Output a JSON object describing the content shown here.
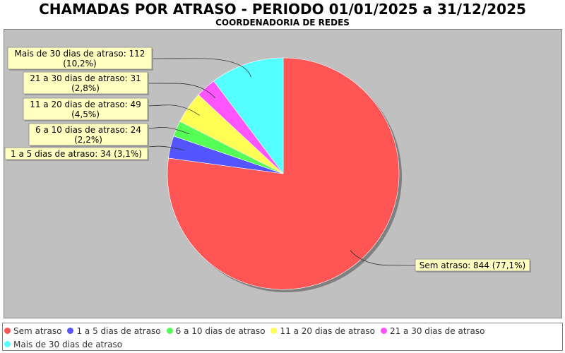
{
  "chart_data": {
    "type": "pie",
    "title": "CHAMADAS POR ATRASO - PERIODO 01/01/2025 a 31/12/2025",
    "subtitle": "COORDENADORIA DE REDES",
    "legend_position": "bottom",
    "slices": [
      {
        "name": "Sem atraso",
        "value": 844,
        "percent": "77,1%",
        "color": "#ff5555",
        "label_lines": [
          "Sem atraso: 844 (77,1%)"
        ]
      },
      {
        "name": "1 a 5 dias de atraso",
        "value": 34,
        "percent": "3,1%",
        "color": "#5555ff",
        "label_lines": [
          "1 a 5 dias de atraso: 34 (3,1%)"
        ]
      },
      {
        "name": "6 a 10 dias de atraso",
        "value": 24,
        "percent": "2,2%",
        "color": "#55ff55",
        "label_lines": [
          "6 a 10 dias de atraso: 24",
          "(2,2%)"
        ]
      },
      {
        "name": "11 a 20 dias de atraso",
        "value": 49,
        "percent": "4,5%",
        "color": "#ffff55",
        "label_lines": [
          "11 a 20 dias de atraso: 49",
          "(4,5%)"
        ]
      },
      {
        "name": "21 a 30 dias de atraso",
        "value": 31,
        "percent": "2,8%",
        "color": "#ff55ff",
        "label_lines": [
          "21 a 30 dias de atraso: 31",
          "(2,8%)"
        ]
      },
      {
        "name": "Mais de 30 dias de atraso",
        "value": 112,
        "percent": "10,2%",
        "color": "#55ffff",
        "label_lines": [
          "Mais de 30 dias de atraso: 112",
          "(10,2%)"
        ]
      }
    ]
  }
}
